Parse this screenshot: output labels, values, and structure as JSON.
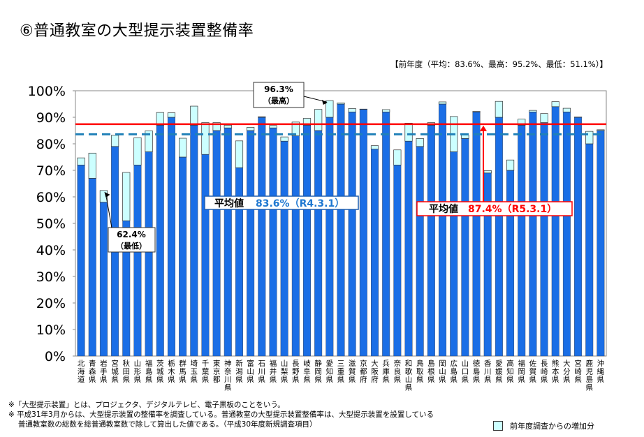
{
  "title": "⑥普通教室の大型提示装置整備率",
  "prev_year_note": "【前年度（平均：83.6%、最高：95.2%、最低：51.1%）】",
  "colors": {
    "bar": "#1a6ee6",
    "increase": "#ccffff",
    "current_avg": "#ff0000",
    "prev_avg": "#2080b8",
    "prev_avg_text": "#1f78d1"
  },
  "chart_data": {
    "type": "bar",
    "stacked": true,
    "categories": [
      "北海道",
      "青森県",
      "岩手県",
      "宮城県",
      "秋田県",
      "山形県",
      "福島県",
      "茨城県",
      "栃木県",
      "群馬県",
      "埼玉県",
      "千葉県",
      "東京都",
      "神奈川県",
      "新潟県",
      "富山県",
      "石川県",
      "福井県",
      "山梨県",
      "長野県",
      "岐阜県",
      "静岡県",
      "愛知県",
      "三重県",
      "滋賀県",
      "京都府",
      "大阪府",
      "兵庫県",
      "奈良県",
      "和歌山県",
      "鳥取県",
      "島根県",
      "岡山県",
      "広島県",
      "山口県",
      "徳島県",
      "香川県",
      "愛媛県",
      "高知県",
      "福岡県",
      "佐賀県",
      "長崎県",
      "熊本県",
      "大分県",
      "宮崎県",
      "鹿児島県",
      "沖縄県"
    ],
    "series": [
      {
        "values": [
          72,
          67,
          58,
          79,
          51,
          72,
          77,
          87,
          90,
          75,
          87,
          76,
          85,
          86,
          71,
          85,
          90,
          86,
          81,
          83,
          87,
          85,
          90,
          95,
          92,
          93,
          78,
          92,
          72,
          81,
          79,
          87,
          95,
          77,
          82,
          92,
          69,
          90,
          70,
          87,
          92,
          88,
          94,
          92,
          90,
          80,
          85
        ]
      },
      {
        "name": "前年年度調査からの増加分",
        "values": [
          2.7,
          9.5,
          4.4,
          4.2,
          18.2,
          10.3,
          7.9,
          4.8,
          1.7,
          7.1,
          7.2,
          12.0,
          3.0,
          1.0,
          10.1,
          1.2,
          0.2,
          0.9,
          1.6,
          5.2,
          2.6,
          8.0,
          6.3,
          0.4,
          1.3,
          0.1,
          1.3,
          0.9,
          5.7,
          6.8,
          3.0,
          1.0,
          0.8,
          13.3,
          1.3,
          0.2,
          0.9,
          6.0,
          3.9,
          2.3,
          0.6,
          3.4,
          1.9,
          1.4,
          0.1,
          4.7,
          0.3
        ]
      }
    ],
    "ylim": [
      0,
      100
    ],
    "yticks": [
      "0%",
      "10%",
      "20%",
      "30%",
      "40%",
      "50%",
      "60%",
      "70%",
      "80%",
      "90%",
      "100%"
    ],
    "reference_lines": [
      {
        "label": "平均値",
        "value_text": "87.4%（R5.3.1）",
        "value": 87.4,
        "style": "solid"
      },
      {
        "label": "平均値",
        "value_text": "83.6%（R4.3.1）",
        "value": 83.6,
        "style": "dashed"
      }
    ],
    "annotations": [
      {
        "text": "96.3%",
        "sub": "（最高）",
        "target": "愛知県"
      },
      {
        "text": "62.4%",
        "sub": "（最低）",
        "target": "岩手県"
      }
    ],
    "legend": "bottom-right"
  },
  "notes": [
    "※「大型提示装置」とは、プロジェクタ、デジタルテレビ、電子黒板のことをいう。",
    "※ 平成31年3月からは、大型提示装置の整備率を調査している。普通教室の大型提示装置整備率は、大型提示装置を設置している",
    "　 普通教室数の総数を総普通教室数で除して算出した値である。（平成30年度新規調査項目）"
  ],
  "legend_label": "前年度調査からの増加分"
}
